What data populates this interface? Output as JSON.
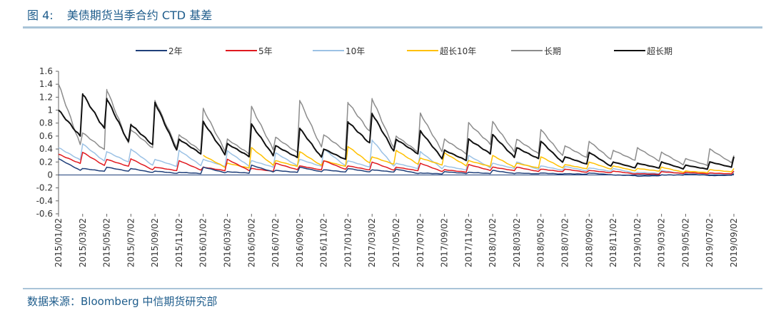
{
  "header": {
    "figure_number": "图 4:",
    "title": "美债期货当季合约 CTD 基差"
  },
  "footer": {
    "source": "数据来源：Bloomberg  中信期货研究部"
  },
  "chart_data": {
    "type": "line",
    "title": "美债期货当季合约 CTD 基差",
    "xlabel": "",
    "ylabel": "",
    "ylim": [
      -0.6,
      1.6
    ],
    "yticks": [
      1.6,
      1.4,
      1.2,
      1,
      0.8,
      0.6,
      0.4,
      0.2,
      0,
      -0.2,
      -0.4,
      -0.6
    ],
    "legend_position": "top",
    "grid": false,
    "categories": [
      "2015/01/02",
      "2015/03/02",
      "2015/05/02",
      "2015/07/02",
      "2015/09/02",
      "2015/11/02",
      "2016/01/02",
      "2016/03/02",
      "2016/05/02",
      "2016/07/02",
      "2016/09/02",
      "2016/11/02",
      "2017/01/02",
      "2017/03/02",
      "2017/05/02",
      "2017/07/02",
      "2017/09/02",
      "2017/11/02",
      "2018/01/02",
      "2018/03/02",
      "2018/05/02",
      "2018/07/02",
      "2018/09/02",
      "2018/11/02",
      "2019/01/02",
      "2019/03/02",
      "2019/05/02",
      "2019/07/02",
      "2019/09/02"
    ],
    "series": [
      {
        "name": "2年",
        "color": "#1f3f7a",
        "values": [
          0.25,
          0.1,
          0.12,
          0.1,
          0.06,
          0.04,
          0.12,
          0.05,
          0.15,
          0.07,
          0.12,
          0.08,
          0.1,
          0.08,
          0.09,
          0.03,
          0.05,
          0.04,
          0.07,
          0.03,
          0.03,
          0.02,
          0.03,
          0.0,
          -0.02,
          0.0,
          0.01,
          -0.01,
          0.02
        ]
      },
      {
        "name": "5年",
        "color": "#e0191f",
        "values": [
          0.32,
          0.35,
          0.24,
          0.25,
          0.12,
          0.22,
          0.12,
          0.24,
          0.1,
          0.18,
          0.14,
          0.22,
          0.14,
          0.2,
          0.12,
          0.18,
          0.08,
          0.16,
          0.12,
          0.12,
          0.09,
          0.09,
          0.07,
          0.06,
          0.02,
          0.05,
          0.04,
          0.03,
          0.06
        ]
      },
      {
        "name": "10年",
        "color": "#9cc2e5",
        "values": [
          0.42,
          0.48,
          0.36,
          0.4,
          0.24,
          0.38,
          0.24,
          0.37,
          0.22,
          0.34,
          0.24,
          0.4,
          0.22,
          0.54,
          0.18,
          0.36,
          0.14,
          0.3,
          0.18,
          0.2,
          0.14,
          0.13,
          0.11,
          0.1,
          0.04,
          0.07,
          0.02,
          0.02,
          0.05
        ]
      },
      {
        "name": "超长10年",
        "color": "#ffc000",
        "values": [
          null,
          null,
          null,
          null,
          null,
          null,
          0.3,
          0.18,
          0.42,
          0.22,
          0.36,
          0.22,
          0.44,
          0.28,
          0.38,
          0.26,
          0.34,
          0.22,
          0.3,
          0.18,
          0.28,
          0.16,
          0.2,
          0.14,
          0.1,
          0.12,
          0.06,
          0.08,
          0.1
        ]
      },
      {
        "name": "长期",
        "color": "#8c8c8c",
        "values": [
          1.4,
          0.65,
          1.32,
          0.7,
          1.15,
          0.62,
          1.02,
          0.55,
          1.05,
          0.58,
          1.15,
          0.62,
          1.12,
          1.18,
          0.6,
          0.95,
          0.55,
          0.8,
          0.82,
          0.55,
          0.7,
          0.45,
          0.52,
          0.38,
          0.42,
          0.35,
          0.25,
          0.4,
          0.3
        ]
      },
      {
        "name": "超长期",
        "color": "#111111",
        "values": [
          1.0,
          1.25,
          1.18,
          0.78,
          1.12,
          0.55,
          0.82,
          0.48,
          0.78,
          0.45,
          0.72,
          0.4,
          0.82,
          0.95,
          0.55,
          0.68,
          0.38,
          0.55,
          0.62,
          0.42,
          0.52,
          0.28,
          0.35,
          0.2,
          0.18,
          0.2,
          0.15,
          0.2,
          0.28
        ]
      }
    ]
  }
}
